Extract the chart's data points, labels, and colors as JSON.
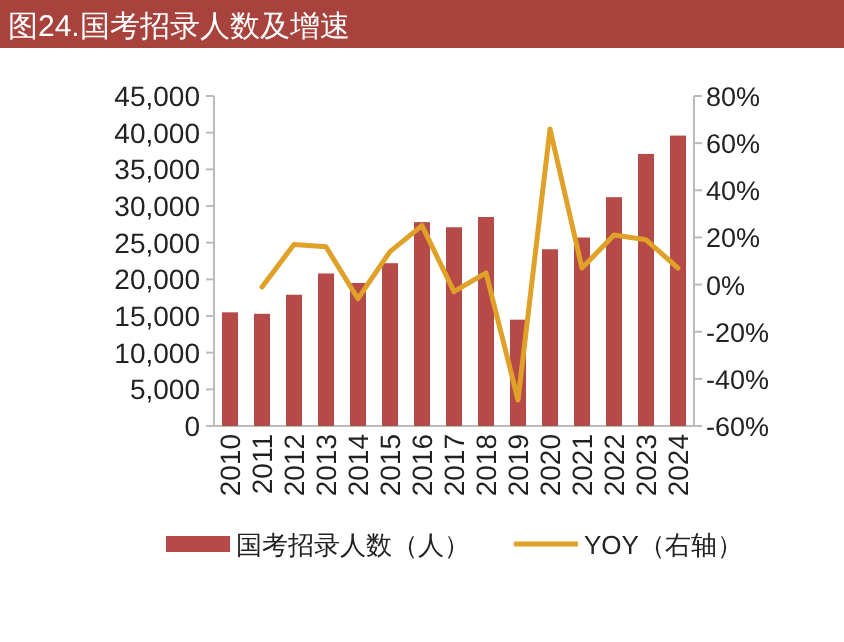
{
  "chart_data": {
    "type": "bar",
    "title": "图24.国考招录人数及增速",
    "categories": [
      "2010",
      "2011",
      "2012",
      "2013",
      "2014",
      "2015",
      "2016",
      "2017",
      "2018",
      "2019",
      "2020",
      "2021",
      "2022",
      "2023",
      "2024"
    ],
    "series": [
      {
        "name": "国考招录人数（人）",
        "color": "#b64a48",
        "values": [
          15500,
          15300,
          17900,
          20800,
          19500,
          22200,
          27800,
          27100,
          28500,
          14500,
          24100,
          25700,
          31200,
          37100,
          39600
        ]
      },
      {
        "name": "YOY（右轴）",
        "type": "line",
        "axis": "y2",
        "color": "#e0a128",
        "values": [
          null,
          -1,
          17,
          16,
          -6,
          14,
          25,
          -3,
          5,
          -49,
          66,
          7,
          21,
          19,
          7
        ]
      }
    ],
    "ylim": [
      0,
      45000
    ],
    "yticks": [
      0,
      {
        "value": 5000,
        "label": "5,000"
      },
      {
        "value": 10000,
        "label": "10,000"
      },
      {
        "value": 15000,
        "label": "15,000"
      },
      {
        "value": 20000,
        "label": "20,000"
      },
      {
        "value": 25000,
        "label": "25,000"
      },
      {
        "value": 30000,
        "label": "30,000"
      },
      {
        "value": 35000,
        "label": "35,000"
      },
      {
        "value": 40000,
        "label": "40,000"
      },
      {
        "value": 45000,
        "label": "45,000"
      }
    ],
    "y2lim": [
      -60,
      80
    ],
    "y2ticks": [
      {
        "value": -60,
        "label": "-60%"
      },
      {
        "value": -40,
        "label": "-40%"
      },
      {
        "value": -20,
        "label": "-20%"
      },
      {
        "value": 0,
        "label": "0%"
      },
      {
        "value": 20,
        "label": "20%"
      },
      {
        "value": 40,
        "label": "40%"
      },
      {
        "value": 60,
        "label": "60%"
      },
      {
        "value": 80,
        "label": "80%"
      }
    ],
    "grid": false,
    "legend": "bottom"
  }
}
